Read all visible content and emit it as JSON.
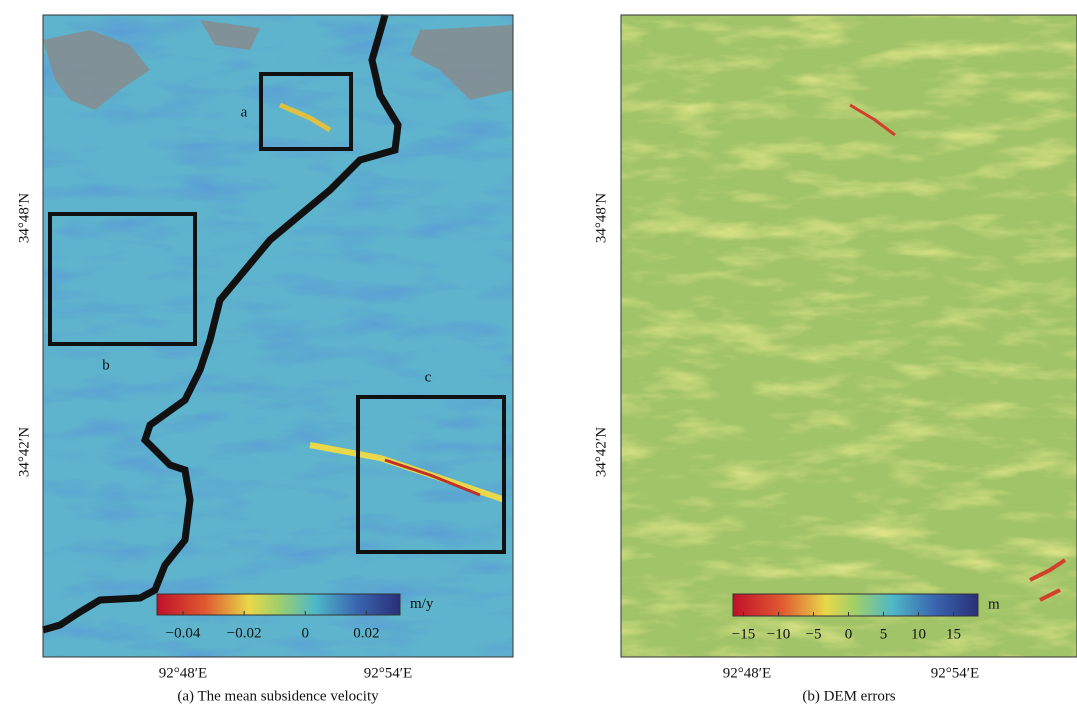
{
  "panels": [
    {
      "caption": "(a) The mean subsidence velocity",
      "unit": "m/y",
      "x_ticks": [
        "92°48′E",
        "92°54′E"
      ],
      "y_ticks": [
        "34°48′N",
        "34°42′N"
      ],
      "boxes": [
        "a",
        "b",
        "c"
      ],
      "colorbar": {
        "lim": [
          -0.0485,
          0.031
        ],
        "ticks": [
          {
            "value": -0.04,
            "label": "−0.04"
          },
          {
            "value": -0.02,
            "label": "−0.02"
          },
          0,
          0.02
        ]
      }
    },
    {
      "caption": "(b) DEM errors",
      "unit": "m",
      "x_ticks": [
        "92°48′E",
        "92°54′E"
      ],
      "y_ticks": [
        "34°48′N",
        "34°42′N"
      ],
      "colorbar": {
        "lim": [
          -16.5,
          18.5
        ],
        "ticks": [
          {
            "value": -15,
            "label": "−15"
          },
          {
            "value": -10,
            "label": "−10"
          },
          {
            "value": -5,
            "label": "−5"
          },
          0,
          5,
          10,
          15
        ]
      }
    }
  ]
}
